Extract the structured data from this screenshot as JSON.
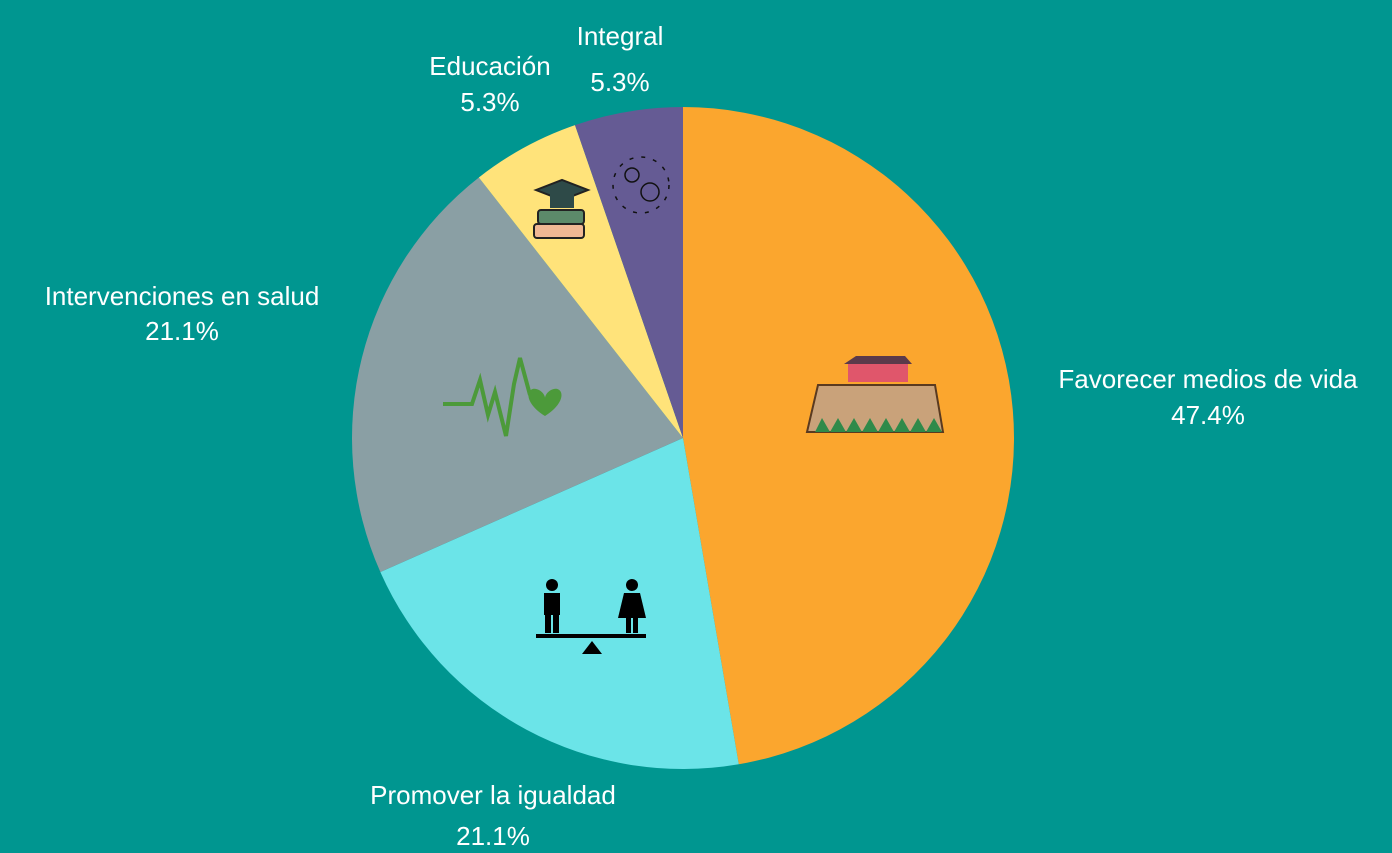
{
  "chart_data": {
    "type": "pie",
    "categories": [
      "Favorecer medios de vida",
      "Promover la igualdad",
      "Intervenciones en salud",
      "Educación",
      "Integral"
    ],
    "values": [
      47.4,
      21.1,
      21.1,
      5.3,
      5.3
    ],
    "value_labels": [
      "47.4%",
      "21.1%",
      "21.1%",
      "5.3%",
      "5.3%"
    ],
    "colors": [
      "#fba62e",
      "#6be4e8",
      "#8a9fa4",
      "#ffe37a",
      "#655b94"
    ]
  }
}
